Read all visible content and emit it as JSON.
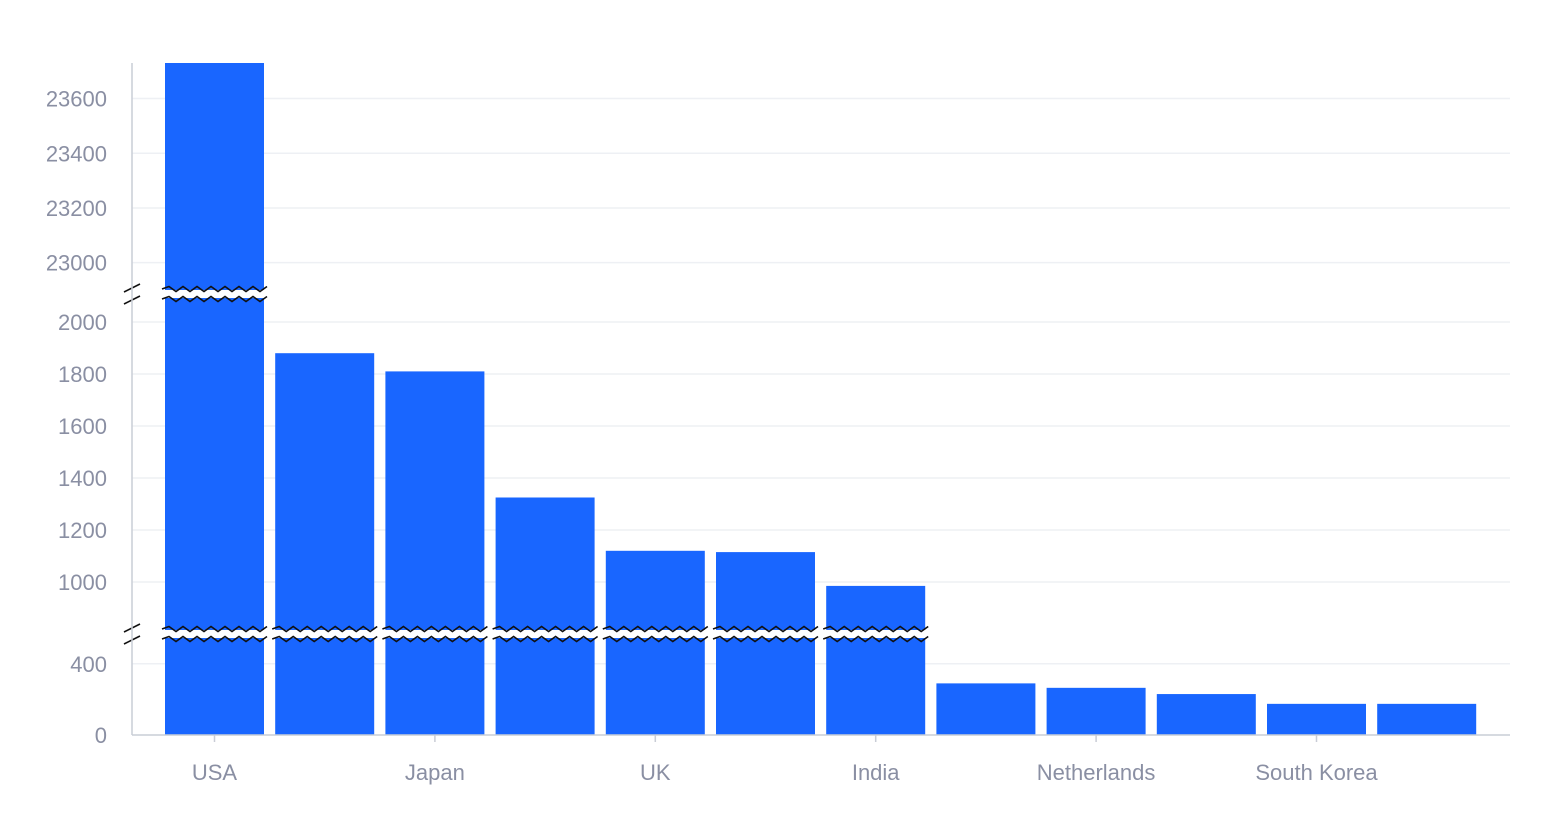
{
  "chart_data": {
    "type": "bar",
    "categories": [
      "USA",
      "",
      "Japan",
      "",
      "UK",
      "",
      "India",
      "",
      "Netherlands",
      "",
      "South Korea",
      ""
    ],
    "values": [
      23730,
      1880,
      1810,
      1325,
      1120,
      1115,
      985,
      290,
      265,
      230,
      175,
      175
    ],
    "x_tick_labels": [
      "USA",
      "Japan",
      "UK",
      "India",
      "Netherlands",
      "South Korea"
    ],
    "y_tick_labels": [
      "0",
      "400",
      "1000",
      "1200",
      "1400",
      "1600",
      "1800",
      "2000",
      "23000",
      "23200",
      "23400",
      "23600"
    ],
    "title": "",
    "xlabel": "",
    "ylabel": "",
    "y_axis_breaks": [
      [
        500,
        800
      ],
      [
        2100,
        22900
      ]
    ],
    "grid": true,
    "bar_color": "#1966ff"
  }
}
